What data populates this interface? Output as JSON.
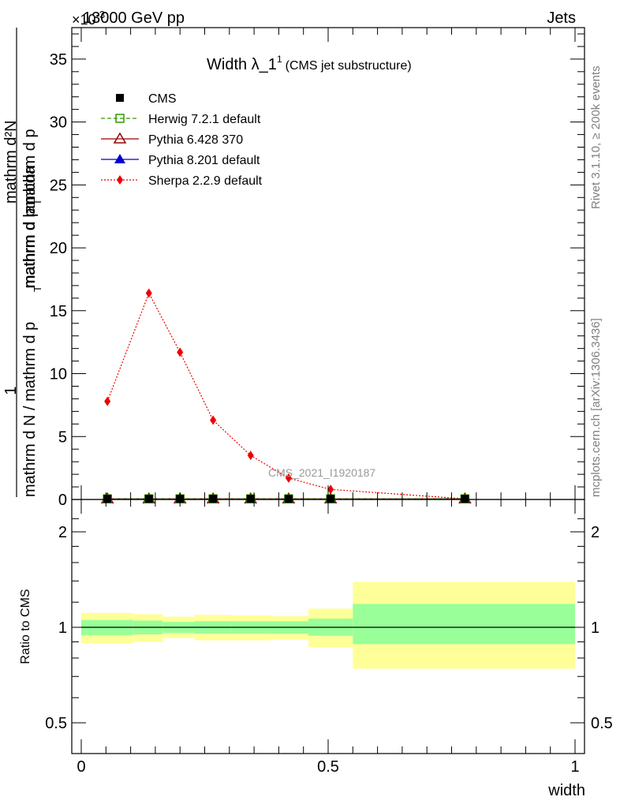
{
  "header": {
    "energy_label": "13000 GeV pp",
    "category_label": "Jets",
    "exponent_label": "×10",
    "exponent_power": "-3"
  },
  "side": {
    "rivet": "Rivet 3.1.10, ≥ 200k events",
    "mcplots": "mcplots.cern.ch [arXiv:1306.3436]"
  },
  "watermark": "CMS_2021_I1920187",
  "chart_data": [
    {
      "type": "line",
      "title": "Width λ_1",
      "title_superscript": "1",
      "subtitle": "(CMS jet substructure)",
      "ylabel_numerator": "1",
      "ylabel_denominator": "mathrm d N / mathrm d p_T mathrm d p_T mathrm d lambda",
      "ylabel_rest": "mathrm d N",
      "ylabel_full_top": "mathrm d²N",
      "ylabel_full_bottom": "mathrm d N / mathrm d p",
      "ylim": [
        0,
        37.5
      ],
      "xlim": [
        -0.01,
        1.01
      ],
      "yticks": [
        0,
        5,
        10,
        15,
        20,
        25,
        30,
        35
      ],
      "ytick_labels": [
        "0",
        "5",
        "10",
        "15",
        "20",
        "25",
        "30",
        "35"
      ],
      "legend_position": "top-left",
      "x": [
        0.053,
        0.137,
        0.2,
        0.267,
        0.343,
        0.42,
        0.505,
        0.777
      ],
      "series": [
        {
          "name": "CMS",
          "color": "#000000",
          "marker": "square-filled",
          "values": [
            0.05,
            0.05,
            0.05,
            0.05,
            0.05,
            0.05,
            0.05,
            0.05
          ]
        },
        {
          "name": "Herwig 7.2.1 default",
          "color": "#339900",
          "marker": "square-open",
          "line": "dashed",
          "values": [
            0.05,
            0.05,
            0.05,
            0.05,
            0.05,
            0.05,
            0.05,
            0.05
          ]
        },
        {
          "name": "Pythia 6.428 370",
          "color": "#990000",
          "marker": "triangle-open",
          "line": "solid",
          "values": [
            0.05,
            0.05,
            0.05,
            0.05,
            0.05,
            0.05,
            0.05,
            0.05
          ]
        },
        {
          "name": "Pythia 8.201 default",
          "color": "#0000cc",
          "marker": "triangle-filled",
          "line": "solid",
          "values": [
            0.05,
            0.05,
            0.05,
            0.05,
            0.05,
            0.05,
            0.05,
            0.05
          ]
        },
        {
          "name": "Sherpa 2.2.9 default",
          "color": "#ee0000",
          "marker": "diamond-filled",
          "line": "dotted",
          "values": [
            7.8,
            16.4,
            11.7,
            6.3,
            3.5,
            1.7,
            0.8,
            0.05
          ]
        }
      ]
    },
    {
      "type": "area",
      "ylabel": "Ratio to CMS",
      "xlabel": "width",
      "ylim": [
        0.4,
        2.4
      ],
      "xlim": [
        -0.01,
        1.01
      ],
      "yticks": [
        0.5,
        1,
        2
      ],
      "ytick_labels": [
        "0.5",
        "1",
        "2"
      ],
      "xticks": [
        0,
        0.5,
        1
      ],
      "xtick_labels": [
        "0",
        "0.5",
        "1"
      ],
      "bins": [
        {
          "x0": 0.0,
          "x1": 0.105,
          "inner": [
            0.945,
            1.055
          ],
          "outer": [
            0.89,
            1.11
          ]
        },
        {
          "x0": 0.105,
          "x1": 0.165,
          "inner": [
            0.95,
            1.05
          ],
          "outer": [
            0.9,
            1.1
          ]
        },
        {
          "x0": 0.165,
          "x1": 0.23,
          "inner": [
            0.96,
            1.04
          ],
          "outer": [
            0.925,
            1.08
          ]
        },
        {
          "x0": 0.23,
          "x1": 0.305,
          "inner": [
            0.955,
            1.045
          ],
          "outer": [
            0.91,
            1.095
          ]
        },
        {
          "x0": 0.305,
          "x1": 0.385,
          "inner": [
            0.955,
            1.045
          ],
          "outer": [
            0.91,
            1.09
          ]
        },
        {
          "x0": 0.385,
          "x1": 0.46,
          "inner": [
            0.955,
            1.045
          ],
          "outer": [
            0.915,
            1.085
          ]
        },
        {
          "x0": 0.46,
          "x1": 0.55,
          "inner": [
            0.94,
            1.065
          ],
          "outer": [
            0.865,
            1.145
          ]
        },
        {
          "x0": 0.55,
          "x1": 1.0,
          "inner": [
            0.885,
            1.185
          ],
          "outer": [
            0.74,
            1.39
          ]
        }
      ],
      "inner_color": "#99ff99",
      "outer_color": "#ffff99"
    }
  ]
}
